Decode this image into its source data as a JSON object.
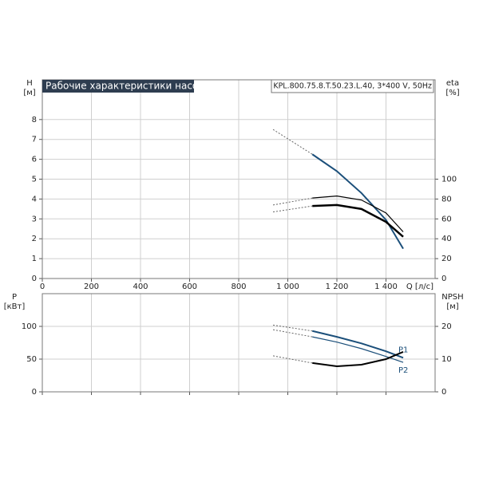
{
  "chart_data": [
    {
      "type": "line",
      "title": "Рабочие характеристики насоса",
      "subtitle": "KPL.800.75.8.T.50.23.L.40, 3*400 V, 50Hz",
      "y_label": [
        "H",
        "[м]"
      ],
      "y2_label": [
        "eta",
        "[%]"
      ],
      "x_label": "Q [л/с]",
      "xlim": [
        0,
        1600
      ],
      "xticks": [
        0,
        200,
        400,
        600,
        800,
        {
          "value": 1000,
          "label": "1 000"
        },
        {
          "value": 1200,
          "label": "1 200"
        },
        {
          "value": 1400,
          "label": "1 400"
        }
      ],
      "ylim": [
        0,
        10
      ],
      "yticks": [
        0,
        1,
        2,
        3,
        4,
        5,
        6,
        7,
        8
      ],
      "y2lim": [
        0,
        200
      ],
      "y2ticks": [
        0,
        20,
        40,
        60,
        80,
        100
      ],
      "grid": true,
      "xtick_labels": true,
      "series": [
        {
          "x": [
            940,
            1100
          ],
          "values": [
            7.5,
            6.25
          ],
          "color": "#1b4f7a",
          "width": 1,
          "dash": true
        },
        {
          "x": [
            1100,
            1200,
            1300,
            1400,
            1470
          ],
          "values": [
            6.25,
            5.4,
            4.3,
            2.95,
            1.5
          ],
          "color": "#1b4f7a",
          "width": 2,
          "dash": false
        },
        {
          "x": [
            940,
            1100
          ],
          "values": [
            74,
            81
          ],
          "color": "#000000",
          "width": 1,
          "dash": true,
          "axis": "y2"
        },
        {
          "x": [
            1100,
            1200,
            1300,
            1400,
            1470
          ],
          "values": [
            81,
            83,
            79,
            66,
            47
          ],
          "color": "#000000",
          "width": 1.2,
          "dash": false,
          "axis": "y2"
        },
        {
          "x": [
            940,
            1100
          ],
          "values": [
            67,
            73
          ],
          "color": "#000000",
          "width": 1,
          "dash": true,
          "axis": "y2"
        },
        {
          "x": [
            1100,
            1200,
            1300,
            1400,
            1470
          ],
          "values": [
            73,
            74,
            70,
            57,
            42
          ],
          "color": "#000000",
          "width": 2.5,
          "dash": false,
          "axis": "y2"
        }
      ]
    },
    {
      "type": "line",
      "y_label": [
        "P",
        "[кВт]"
      ],
      "y2_label": [
        "NPSH",
        "[м]"
      ],
      "xlim": [
        0,
        1600
      ],
      "xticks": [
        0,
        200,
        400,
        600,
        800,
        1000,
        1200,
        1400
      ],
      "xtick_labels": false,
      "ylim": [
        0,
        150
      ],
      "yticks": [
        0,
        50,
        100
      ],
      "y2lim": [
        0,
        30
      ],
      "y2ticks": [
        0,
        10,
        20
      ],
      "grid": true,
      "series": [
        {
          "x": [
            940,
            1100
          ],
          "values": [
            102,
            93
          ],
          "color": "#1b4f7a",
          "width": 1,
          "dash": true
        },
        {
          "name": "P1",
          "x": [
            1100,
            1200,
            1300,
            1400,
            1470
          ],
          "values": [
            93,
            84,
            74,
            62,
            52
          ],
          "color": "#1b4f7a",
          "width": 2,
          "dash": false
        },
        {
          "x": [
            940,
            1100
          ],
          "values": [
            95,
            84
          ],
          "color": "#1b4f7a",
          "width": 1,
          "dash": true
        },
        {
          "name": "P2",
          "x": [
            1100,
            1200,
            1300,
            1400,
            1470
          ],
          "values": [
            84,
            76,
            66,
            54,
            45
          ],
          "color": "#1b4f7a",
          "width": 1.2,
          "dash": false
        },
        {
          "x": [
            940,
            1100
          ],
          "values": [
            11,
            8.8
          ],
          "color": "#000000",
          "width": 1,
          "dash": true,
          "axis": "y2"
        },
        {
          "x": [
            1100,
            1200,
            1300,
            1400,
            1470
          ],
          "values": [
            8.8,
            7.8,
            8.3,
            10,
            12.2
          ],
          "color": "#000000",
          "width": 2,
          "dash": false,
          "axis": "y2"
        }
      ]
    }
  ]
}
